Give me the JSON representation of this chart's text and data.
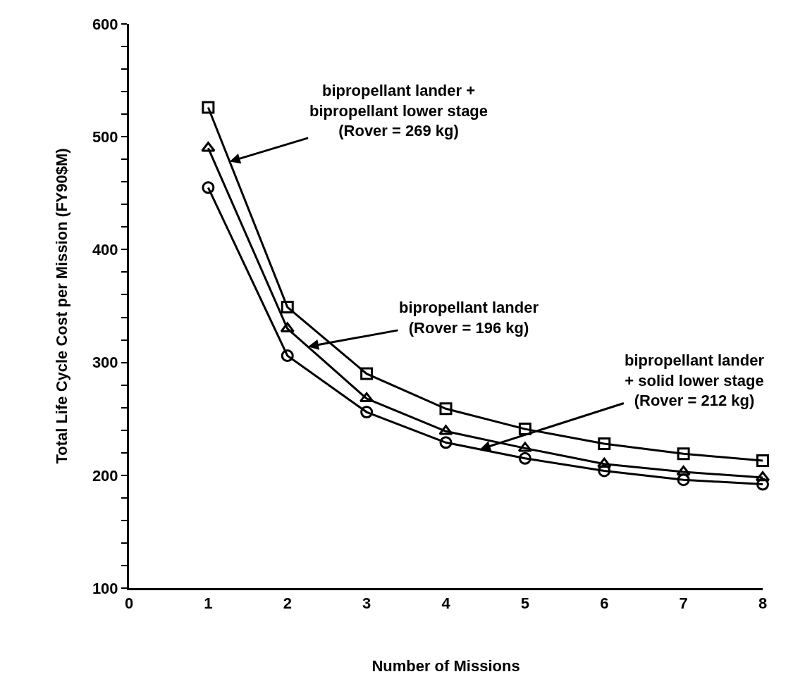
{
  "chart_data": {
    "type": "line",
    "xlabel": "Number of Missions",
    "ylabel": "Total Life Cycle Cost per Mission (FY90$M)",
    "xlim": [
      0,
      8
    ],
    "xticks": [
      0,
      1,
      2,
      3,
      4,
      5,
      6,
      7,
      8
    ],
    "ylim": [
      100,
      600
    ],
    "yticks": [
      100,
      {
        "value": 120,
        "label": null
      },
      {
        "value": 140,
        "label": null
      },
      {
        "value": 160,
        "label": null
      },
      {
        "value": 180,
        "label": null
      },
      200,
      {
        "value": 220,
        "label": null
      },
      {
        "value": 240,
        "label": null
      },
      {
        "value": 260,
        "label": null
      },
      {
        "value": 280,
        "label": null
      },
      300,
      {
        "value": 320,
        "label": null
      },
      {
        "value": 340,
        "label": null
      },
      {
        "value": 360,
        "label": null
      },
      {
        "value": 380,
        "label": null
      },
      400,
      {
        "value": 420,
        "label": null
      },
      {
        "value": 440,
        "label": null
      },
      {
        "value": 460,
        "label": null
      },
      {
        "value": 480,
        "label": null
      },
      500,
      {
        "value": 520,
        "label": null
      },
      {
        "value": 540,
        "label": null
      },
      {
        "value": 560,
        "label": null
      },
      {
        "value": 580,
        "label": null
      },
      600
    ],
    "x": [
      1,
      2,
      3,
      4,
      5,
      6,
      7,
      8
    ],
    "grid": false,
    "line_style": "solid",
    "series": [
      {
        "color": "#000000",
        "marker": "square",
        "values": [
          526,
          349,
          290,
          259,
          241,
          228,
          219,
          213
        ]
      },
      {
        "color": "#000000",
        "marker": "triangle",
        "values": [
          490,
          330,
          268,
          239,
          224,
          210,
          203,
          198
        ]
      },
      {
        "color": "#000000",
        "marker": "circle",
        "values": [
          455,
          306,
          256,
          229,
          215,
          204,
          196,
          192
        ]
      }
    ],
    "annotations": [
      {
        "text": "bipropellant lander +\nbipropellant lower stage\n(Rover = 269 kg)",
        "x": 1.27,
        "y": 478
      },
      {
        "text": "bipropellant lander\n(Rover = 196 kg)",
        "x": 2.26,
        "y": 314
      },
      {
        "text": "bipropellant lander\n+ solid lower stage\n(Rover = 212 kg)",
        "x": 4.43,
        "y": 223
      }
    ]
  }
}
